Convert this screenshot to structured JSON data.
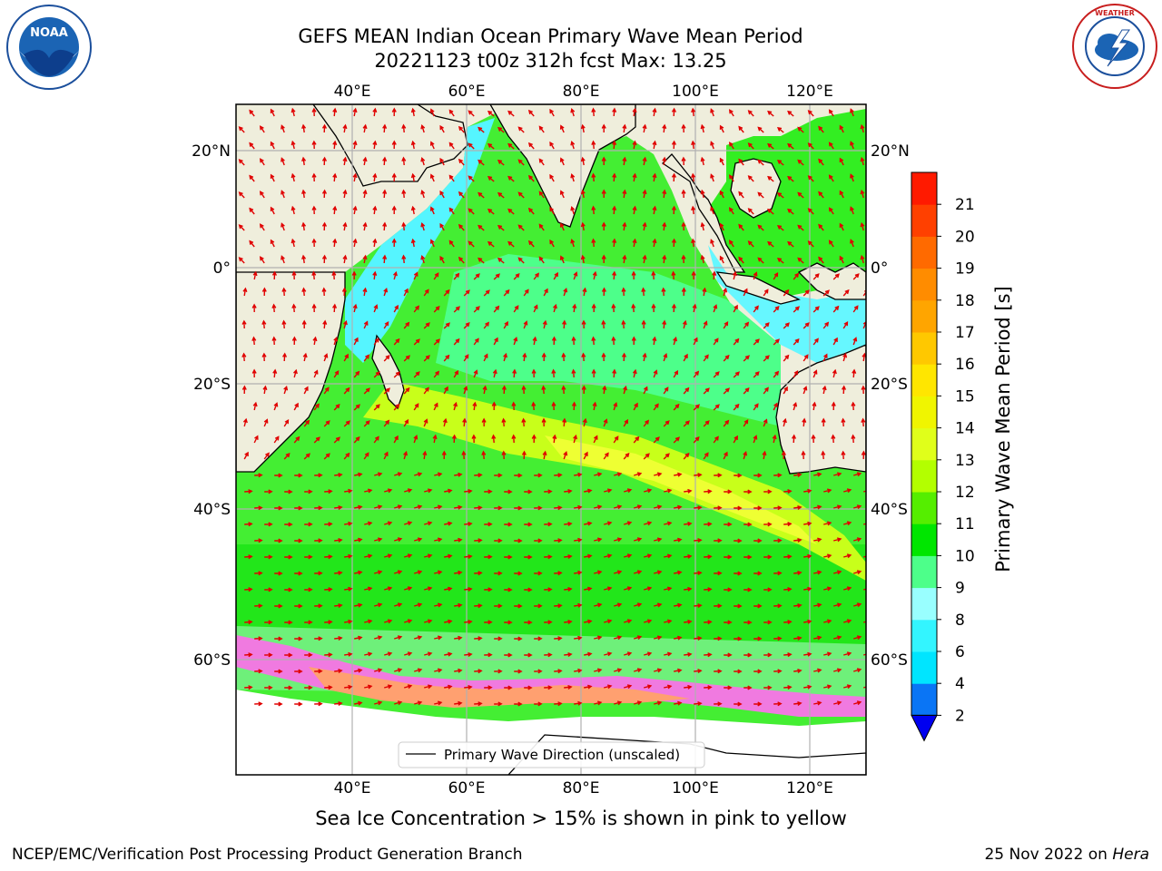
{
  "title": {
    "line1": "GEFS MEAN Indian Ocean Primary Wave Mean Period",
    "line2": "20221123 t00z 312h fcst   Max: 13.25"
  },
  "map": {
    "lon_ticks": [
      "40°E",
      "60°E",
      "80°E",
      "100°E",
      "120°E"
    ],
    "lat_ticks": [
      "20°N",
      "0°",
      "20°S",
      "40°S",
      "60°S"
    ],
    "legend_label": "Primary Wave Direction (unscaled)"
  },
  "colorbar": {
    "label": "Primary Wave Mean Period [s]",
    "levels": [
      2,
      4,
      6,
      8,
      9,
      10,
      11,
      12,
      13,
      14,
      15,
      16,
      17,
      18,
      19,
      20,
      21
    ],
    "colors": [
      "#0a75f5",
      "#00e5ff",
      "#33f5ff",
      "#99ffff",
      "#4dff8a",
      "#00e600",
      "#55ee00",
      "#b3ff00",
      "#e0ff1a",
      "#f0f500",
      "#ffe600",
      "#ffc800",
      "#ffa500",
      "#ff8c00",
      "#ff6a00",
      "#ff4000",
      "#ff1a00"
    ],
    "extend_color": "#0000f0"
  },
  "notes": {
    "sea_ice": "Sea Ice Concentration > 15% is shown in pink to yellow"
  },
  "footer": {
    "left": "NCEP/EMC/Verification Post Processing Product Generation Branch",
    "date": "25 Nov 2022 on ",
    "host": "Hera"
  },
  "logos": {
    "noaa": "NOAA",
    "nws": "NATIONAL WEATHER SERVICE"
  }
}
